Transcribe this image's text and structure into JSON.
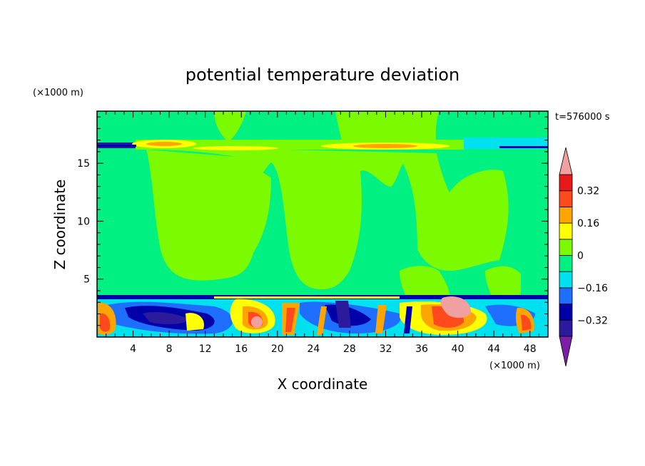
{
  "chart_data": {
    "type": "heatmap",
    "title": "potential temperature deviation",
    "xlabel": "X coordinate",
    "ylabel": "Z coordinate",
    "x_unit": "(×1000 m)",
    "y_unit": "(×1000 m)",
    "time_label": "t=576000 s",
    "xlim": [
      0,
      50
    ],
    "ylim": [
      0,
      19.5
    ],
    "x_ticks": [
      4,
      8,
      12,
      16,
      20,
      24,
      28,
      32,
      36,
      40,
      44,
      48
    ],
    "y_ticks": [
      5,
      10,
      15
    ],
    "colorbar": {
      "labels": [
        "0.32",
        "0.16",
        "0",
        "−0.16",
        "−0.32"
      ],
      "label_values": [
        0.32,
        0.16,
        0,
        -0.16,
        -0.32
      ],
      "levels": [
        -0.4,
        -0.32,
        -0.24,
        -0.16,
        -0.08,
        0,
        0.08,
        0.16,
        0.24,
        0.32,
        0.4
      ],
      "colors": [
        "#7a1fa6",
        "#2b1a9c",
        "#0000a8",
        "#1f6fff",
        "#00e1f0",
        "#00f082",
        "#7cfa00",
        "#ffff00",
        "#ffa500",
        "#ff4a1e",
        "#e81919",
        "#f0a0a0"
      ]
    },
    "layers": [
      {
        "z": [
          0,
          3.5
        ],
        "value": "mixed",
        "range": [
          -0.4,
          0.4
        ]
      },
      {
        "z": [
          3.5,
          16.5
        ],
        "value": "mixed",
        "range": [
          -0.08,
          0.08
        ]
      },
      {
        "z": [
          16.5,
          17.5
        ],
        "value": "mixed",
        "range": [
          -0.4,
          0.32
        ]
      },
      {
        "z": [
          17.5,
          19.5
        ],
        "value": "mixed",
        "range": [
          -0.08,
          0.08
        ]
      }
    ]
  }
}
